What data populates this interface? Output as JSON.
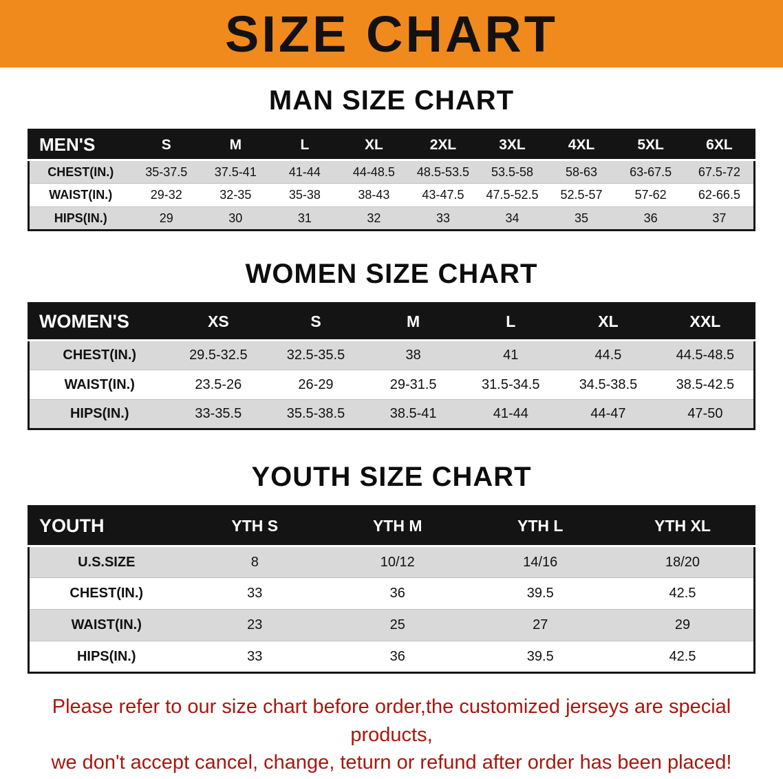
{
  "banner": {
    "title": "SIZE CHART"
  },
  "colors": {
    "banner_bg": "#f08a1d",
    "header_bg": "#141414",
    "row_alt": "#d9d9d9",
    "notice": "#a8170c"
  },
  "sections": [
    {
      "heading": "MAN SIZE CHART",
      "table": {
        "header": [
          "MEN'S",
          "S",
          "M",
          "L",
          "XL",
          "2XL",
          "3XL",
          "4XL",
          "5XL",
          "6XL"
        ],
        "rows": [
          [
            "CHEST(IN.)",
            "35-37.5",
            "37.5-41",
            "41-44",
            "44-48.5",
            "48.5-53.5",
            "53.5-58",
            "58-63",
            "63-67.5",
            "67.5-72"
          ],
          [
            "WAIST(IN.)",
            "29-32",
            "32-35",
            "35-38",
            "38-43",
            "43-47.5",
            "47.5-52.5",
            "52.5-57",
            "57-62",
            "62-66.5"
          ],
          [
            "HIPS(IN.)",
            "29",
            "30",
            "31",
            "32",
            "33",
            "34",
            "35",
            "36",
            "37"
          ]
        ]
      }
    },
    {
      "heading": "WOMEN SIZE CHART",
      "table": {
        "header": [
          "WOMEN'S",
          "XS",
          "S",
          "M",
          "L",
          "XL",
          "XXL"
        ],
        "rows": [
          [
            "CHEST(IN.)",
            "29.5-32.5",
            "32.5-35.5",
            "38",
            "41",
            "44.5",
            "44.5-48.5"
          ],
          [
            "WAIST(IN.)",
            "23.5-26",
            "26-29",
            "29-31.5",
            "31.5-34.5",
            "34.5-38.5",
            "38.5-42.5"
          ],
          [
            "HIPS(IN.)",
            "33-35.5",
            "35.5-38.5",
            "38.5-41",
            "41-44",
            "44-47",
            "47-50"
          ]
        ]
      }
    },
    {
      "heading": "YOUTH SIZE CHART",
      "table": {
        "header": [
          "YOUTH",
          "YTH S",
          "YTH M",
          "YTH L",
          "YTH XL"
        ],
        "rows": [
          [
            "U.S.SIZE",
            "8",
            "10/12",
            "14/16",
            "18/20"
          ],
          [
            "CHEST(IN.)",
            "33",
            "36",
            "39.5",
            "42.5"
          ],
          [
            "WAIST(IN.)",
            "23",
            "25",
            "27",
            "29"
          ],
          [
            "HIPS(IN.)",
            "33",
            "36",
            "39.5",
            "42.5"
          ]
        ]
      }
    }
  ],
  "footer": {
    "line1": "Please refer to our size chart before order,the customized jerseys are special products,",
    "line2": "we don't accept cancel, change, teturn or refund after order has been placed!"
  }
}
